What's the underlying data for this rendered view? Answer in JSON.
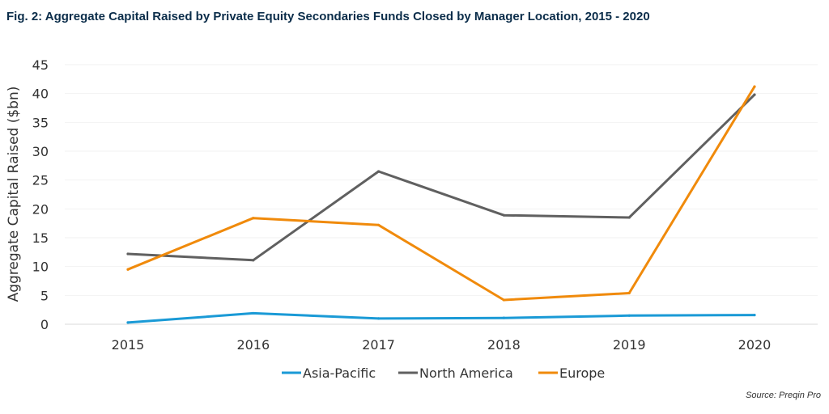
{
  "title": "Fig. 2: Aggregate Capital Raised by Private Equity Secondaries Funds Closed by Manager Location, 2015 - 2020",
  "source": "Source: Preqin Pro",
  "chart_data": {
    "type": "line",
    "title": "Fig. 2: Aggregate Capital Raised by Private Equity Secondaries Funds Closed by Manager Location, 2015 - 2020",
    "xlabel": "",
    "ylabel": "Aggregate Capital Raised ($bn)",
    "x": [
      "2015",
      "2016",
      "2017",
      "2018",
      "2019",
      "2020"
    ],
    "ylim": [
      0,
      45
    ],
    "yticks": [
      0,
      5,
      10,
      15,
      20,
      25,
      30,
      35,
      40,
      45
    ],
    "grid": true,
    "legend_position": "bottom",
    "series": [
      {
        "name": "Asia-Pacific",
        "color": "#1a9ad6",
        "values": [
          0.3,
          1.9,
          1.0,
          1.1,
          1.5,
          1.6
        ]
      },
      {
        "name": "North America",
        "color": "#606060",
        "values": [
          12.2,
          11.1,
          26.5,
          18.9,
          18.5,
          39.8
        ]
      },
      {
        "name": "Europe",
        "color": "#f08a0b",
        "values": [
          9.5,
          18.4,
          17.2,
          4.2,
          5.4,
          41.2
        ]
      }
    ]
  }
}
